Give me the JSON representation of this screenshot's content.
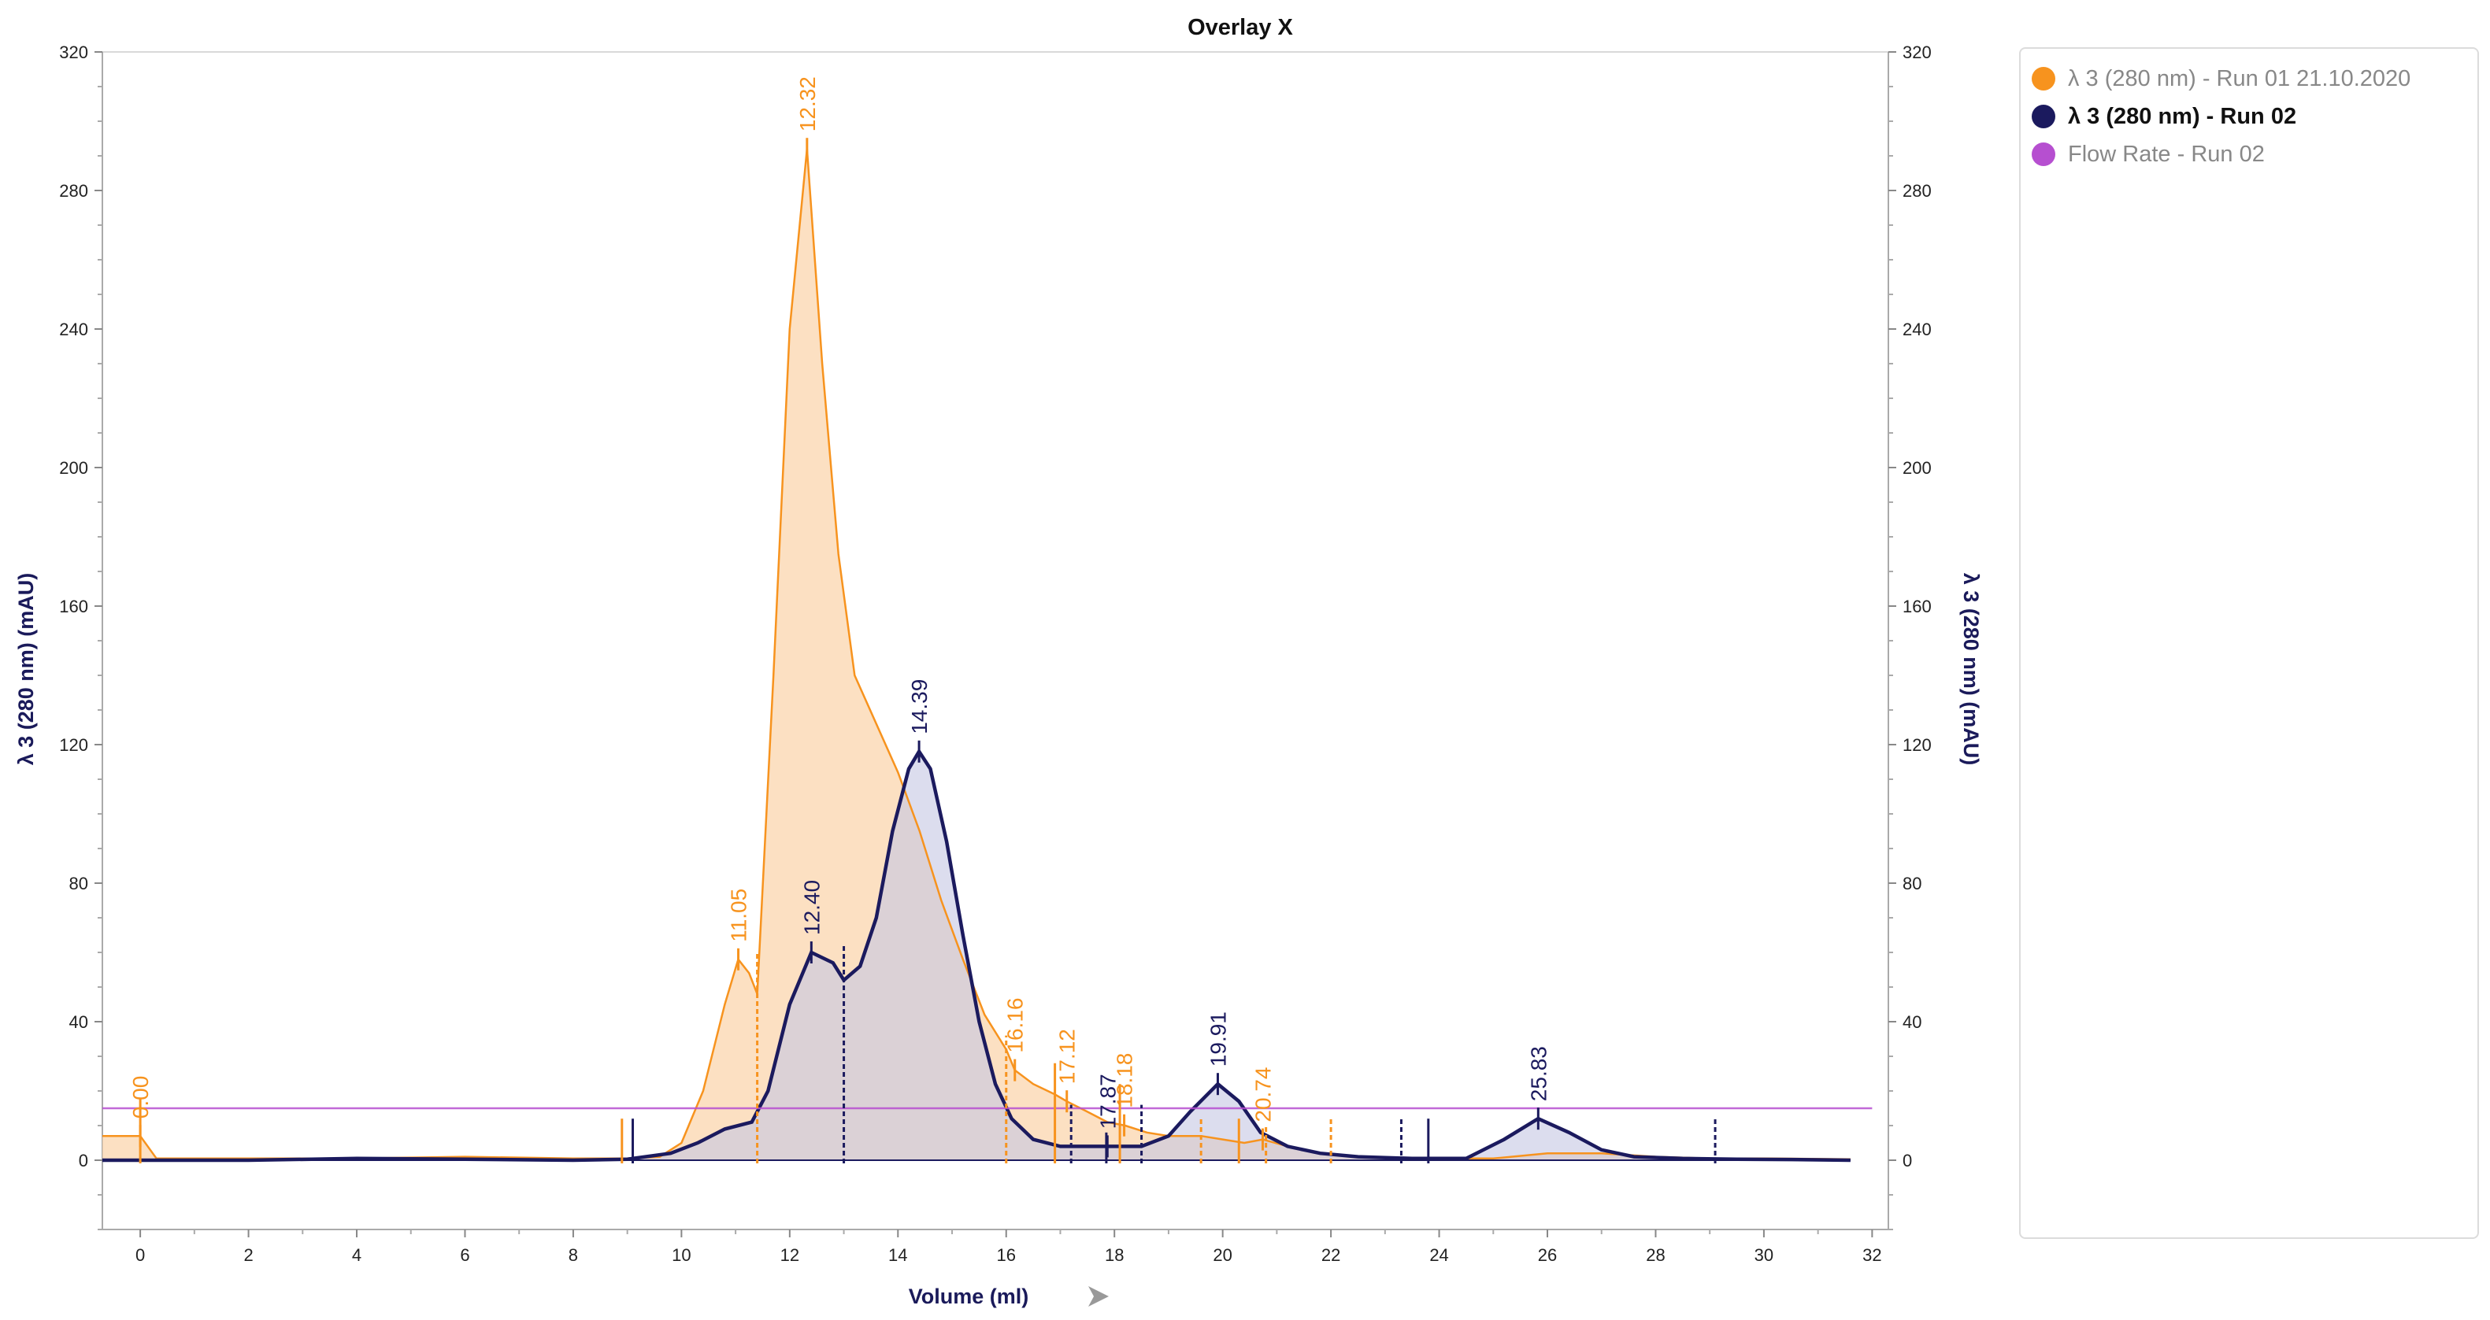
{
  "chart_data": {
    "type": "line",
    "title": "Overlay X",
    "xlabel": "Volume (ml)",
    "ylabel_left": "λ 3 (280 nm) (mAU)",
    "ylabel_right": "λ 3 (280 nm) (mAU)",
    "xlim": [
      -0.7,
      32.3
    ],
    "ylim": [
      -20,
      320
    ],
    "x_ticks": [
      "0",
      "2",
      "4",
      "6",
      "8",
      "10",
      "12",
      "14",
      "16",
      "18",
      "20",
      "22",
      "24",
      "26",
      "28",
      "30",
      "32"
    ],
    "y_ticks": [
      "0",
      "40",
      "80",
      "120",
      "160",
      "200",
      "240",
      "280",
      "320"
    ],
    "series": [
      {
        "name": "λ 3 (280 nm) - Run 01 21.10.2020",
        "color": "#f7931e",
        "fill": "#fbd5ad",
        "x": [
          -0.7,
          0,
          0.3,
          2,
          4,
          6,
          8,
          9,
          9.6,
          10,
          10.4,
          10.8,
          11.05,
          11.25,
          11.4,
          11.7,
          12.0,
          12.32,
          12.6,
          12.9,
          13.2,
          13.6,
          14.0,
          14.4,
          14.8,
          15.2,
          15.6,
          16.0,
          16.16,
          16.5,
          16.9,
          17.12,
          17.5,
          17.87,
          18.2,
          18.6,
          19.0,
          19.6,
          20.0,
          20.4,
          20.74,
          21.2,
          21.8,
          22.5,
          24,
          25,
          26,
          27,
          28,
          29,
          30,
          31.6
        ],
        "values": [
          7,
          7,
          0.5,
          0.5,
          0.5,
          1,
          0.5,
          0.5,
          1,
          5,
          20,
          45,
          58,
          54,
          48,
          140,
          240,
          292,
          230,
          175,
          140,
          126,
          112,
          95,
          75,
          58,
          42,
          32,
          26,
          22,
          19,
          17,
          14,
          11,
          10,
          8,
          7,
          7,
          6,
          5,
          6,
          4,
          2,
          1,
          0.5,
          0.5,
          2,
          2,
          1,
          0.5,
          0.5,
          0.3
        ],
        "peak_labels": [
          "0.00",
          "11.05",
          "12.32",
          "16.16",
          "17.12",
          "18.18",
          "20.74"
        ]
      },
      {
        "name": "λ 3 (280 nm) - Run 02",
        "color": "#1b1a5e",
        "fill": "#c4c6e3",
        "x": [
          -0.7,
          2,
          4,
          6,
          8,
          9,
          9.8,
          10.3,
          10.8,
          11.3,
          11.6,
          12.0,
          12.4,
          12.8,
          13.0,
          13.3,
          13.6,
          13.9,
          14.2,
          14.39,
          14.6,
          14.9,
          15.2,
          15.5,
          15.8,
          16.1,
          16.5,
          17.0,
          17.5,
          18.0,
          18.5,
          19.0,
          19.4,
          19.91,
          20.3,
          20.7,
          21.2,
          21.8,
          22.5,
          23.5,
          24.5,
          25.2,
          25.83,
          26.4,
          27.0,
          27.6,
          28.5,
          29.5,
          30.5,
          31.6
        ],
        "values": [
          0,
          0,
          0.5,
          0.3,
          0,
          0.3,
          2,
          5,
          9,
          11,
          20,
          45,
          60,
          57,
          52,
          56,
          70,
          95,
          113,
          118,
          113,
          92,
          65,
          40,
          22,
          12,
          6,
          4,
          4,
          4,
          4,
          7,
          14,
          22,
          17,
          8,
          4,
          2,
          1,
          0.5,
          0.5,
          6,
          12,
          8,
          3,
          1,
          0.5,
          0.3,
          0.2,
          0
        ],
        "peak_labels": [
          "12.40",
          "14.39",
          "17.87",
          "19.91",
          "25.83"
        ]
      },
      {
        "name": "Flow Rate - Run 02",
        "color": "#b64fd0",
        "x": [
          -0.7,
          32
        ],
        "values": [
          15,
          15
        ]
      }
    ]
  }
}
